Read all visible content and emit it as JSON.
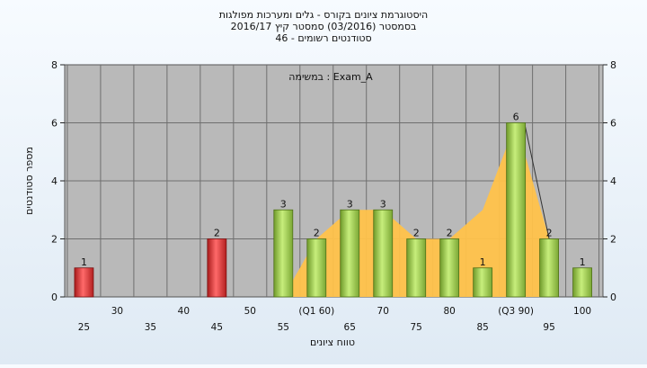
{
  "chart_data": {
    "type": "bar",
    "title_lines": [
      "היסטוגרמת ציונים בקורס - גלים ומערכות מפולגות",
      "בסמסטר  (03/2016)  סמסטר קיץ  2016/17",
      "סטודנטים רשומים - 46"
    ],
    "annotation": "במשימה : Exam_A",
    "xlabel": "טווח ציונים",
    "ylabel": "מספר סטודנטים",
    "ylim": [
      0,
      8
    ],
    "yticks": [
      0,
      2,
      4,
      6,
      8
    ],
    "grid": true,
    "categories": [
      "25",
      "30",
      "35",
      "40",
      "45",
      "50",
      "55",
      "(Q1 60)",
      "65",
      "70",
      "75",
      "80",
      "85",
      "(Q3 90)",
      "95",
      "100"
    ],
    "values": [
      1,
      0,
      0,
      0,
      2,
      0,
      3,
      2,
      3,
      3,
      2,
      2,
      1,
      6,
      2,
      1
    ],
    "bar_colors": [
      "red",
      null,
      null,
      null,
      "red",
      null,
      "green",
      "green",
      "green",
      "green",
      "green",
      "green",
      "green",
      "green",
      "green",
      "green"
    ],
    "band_series": [
      0,
      0,
      0,
      0,
      0,
      0,
      0,
      2,
      3,
      3,
      2,
      2,
      3,
      6,
      2,
      0
    ],
    "colors": {
      "plot_bg": "#b9b9b9",
      "grid": "#6f6f6f",
      "red_bar": "#e23434",
      "green_bar": "#9acd4a",
      "band": "#ffc24a"
    }
  }
}
